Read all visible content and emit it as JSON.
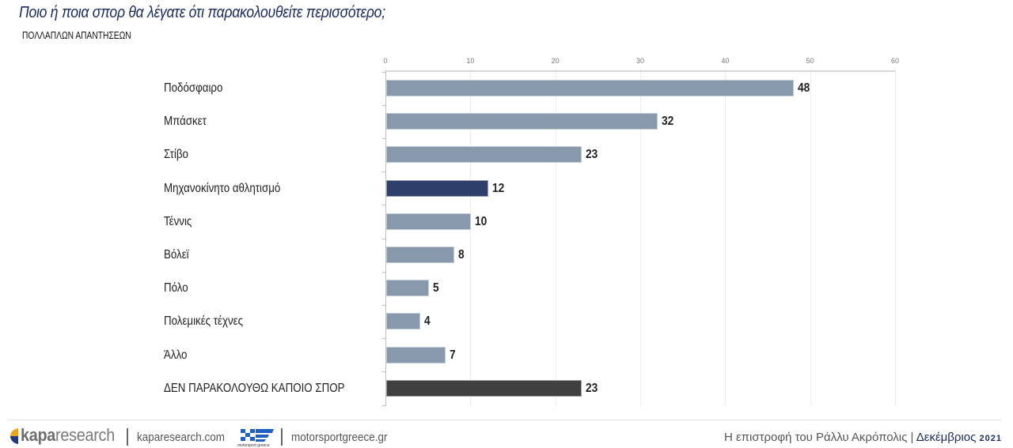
{
  "header": {
    "title": "Ποιο ή ποια σπορ θα λέγατε ότι παρακολουθείτε περισσότερο;",
    "subtitle": "ΠΟΛΛΑΠΛΩΝ ΑΠΑΝΤΗΣΕΩΝ"
  },
  "chart_data": {
    "type": "bar",
    "orientation": "horizontal",
    "title": "Ποιο ή ποια σπορ θα λέγατε ότι παρακολουθείτε περισσότερο;",
    "subtitle": "ΠΟΛΛΑΠΛΩΝ ΑΠΑΝΤΗΣΕΩΝ",
    "xlabel": "",
    "ylabel": "",
    "xlim": [
      0,
      60
    ],
    "x_ticks": [
      0,
      10,
      20,
      30,
      40,
      50,
      60
    ],
    "x_axis_position": "top",
    "grid": true,
    "legend": null,
    "categories": [
      "Ποδόσφαιρο",
      "Μπάσκετ",
      "Στίβο",
      "Μηχανοκίνητο αθλητισμό",
      "Τέννις",
      "Βόλεϊ",
      "Πόλο",
      "Πολεμικές τέχνες",
      "Άλλο",
      "ΔΕΝ ΠΑΡΑΚΟΛΟΥΘΩ ΚΑΠΟΙΟ ΣΠΟΡ"
    ],
    "values": [
      48,
      32,
      23,
      12,
      10,
      8,
      5,
      4,
      7,
      23
    ],
    "bar_colors": [
      "#8799aa",
      "#8799aa",
      "#8799aa",
      "#2e3f6b",
      "#8799aa",
      "#8799aa",
      "#8799aa",
      "#8799aa",
      "#8799aa",
      "#404040"
    ],
    "data_labels": [
      "48",
      "32",
      "23",
      "12",
      "10",
      "8",
      "5",
      "4",
      "7",
      "23"
    ]
  },
  "colors": {
    "default_bar": "#8799aa",
    "highlight_bar": "#2e3f6b",
    "none_bar": "#404040",
    "title": "#1b2a5a"
  },
  "footer": {
    "brand_bold": "kapa",
    "brand_light": "research",
    "brand_url": "kaparesearch.com",
    "partner_caption": "motorsport greece",
    "partner_url": "motorsportgreece.gr",
    "right_text": "Η επιστροφή του Ράλλυ Ακρόπολις |",
    "right_date": "Δεκέμβριος",
    "right_year": "2021"
  }
}
